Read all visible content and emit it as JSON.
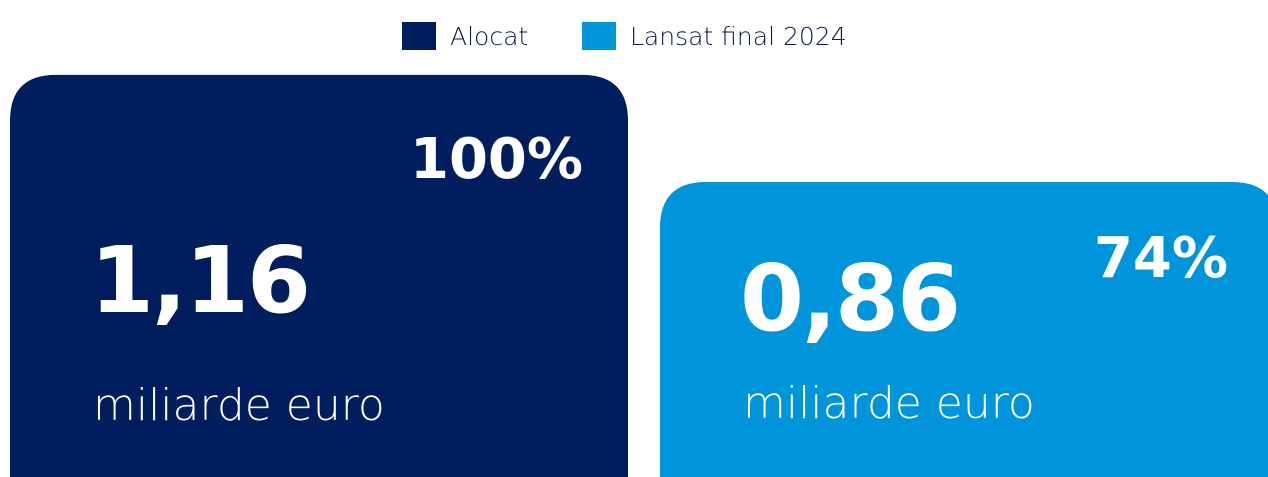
{
  "chart_data": {
    "type": "bar",
    "unit": "miliarde euro",
    "series": [
      {
        "name": "Alocat",
        "color": "#001e5e",
        "values": [
          1.16
        ],
        "value_labels": [
          "1,16"
        ],
        "shares": [
          100
        ],
        "share_labels": [
          "100%"
        ]
      },
      {
        "name": "Lansat final 2024",
        "color": "#0095db",
        "values": [
          0.86
        ],
        "value_labels": [
          "0,86"
        ],
        "shares": [
          74
        ],
        "share_labels": [
          "74%"
        ]
      }
    ]
  }
}
